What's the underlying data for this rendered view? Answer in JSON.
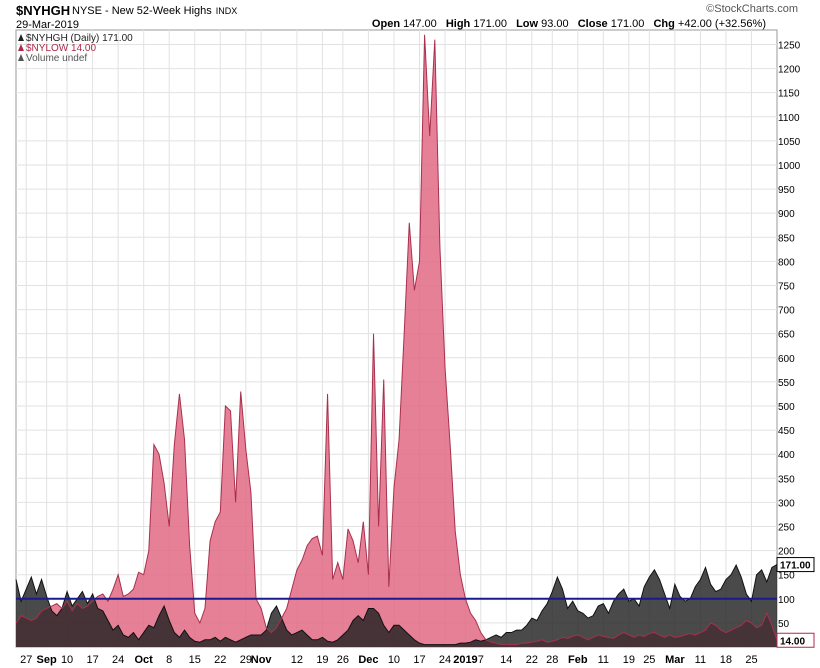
{
  "header": {
    "symbol": "$NYHGH",
    "description": "NYSE - New 52-Week Highs",
    "exchange": "INDX",
    "date": "29-Mar-2019",
    "brand": "©StockCharts.com",
    "open_label": "Open",
    "open": "147.00",
    "high_label": "High",
    "high": "171.00",
    "low_label": "Low",
    "low": "93.00",
    "close_label": "Close",
    "close": "171.00",
    "chg_label": "Chg",
    "chg": "+42.00 (+32.56%)"
  },
  "chart_data": {
    "type": "area",
    "legend": [
      {
        "label": "$NYHGH (Daily) 171.00",
        "color": "#222222"
      },
      {
        "label": "$NYLOW 14.00",
        "color": "#b0284a"
      },
      {
        "label": "Volume undef",
        "color": "#555555"
      }
    ],
    "ylim": [
      0,
      1280
    ],
    "yticks": [
      50,
      100,
      150,
      200,
      250,
      300,
      350,
      400,
      450,
      500,
      550,
      600,
      650,
      700,
      750,
      800,
      850,
      900,
      950,
      1000,
      1050,
      1100,
      1150,
      1200,
      1250
    ],
    "reference_line": 100,
    "last_value_labels": [
      {
        "text": "171.00",
        "value": 171
      },
      {
        "text": "14.00",
        "value": 14
      }
    ],
    "xtick_labels": [
      {
        "text": "27",
        "index": 2,
        "bold": false
      },
      {
        "text": "Sep",
        "index": 6,
        "bold": true
      },
      {
        "text": "10",
        "index": 10,
        "bold": false
      },
      {
        "text": "17",
        "index": 15,
        "bold": false
      },
      {
        "text": "24",
        "index": 20,
        "bold": false
      },
      {
        "text": "Oct",
        "index": 25,
        "bold": true
      },
      {
        "text": "8",
        "index": 30,
        "bold": false
      },
      {
        "text": "15",
        "index": 35,
        "bold": false
      },
      {
        "text": "22",
        "index": 40,
        "bold": false
      },
      {
        "text": "29",
        "index": 45,
        "bold": false
      },
      {
        "text": "Nov",
        "index": 48,
        "bold": true
      },
      {
        "text": "12",
        "index": 55,
        "bold": false
      },
      {
        "text": "19",
        "index": 60,
        "bold": false
      },
      {
        "text": "26",
        "index": 64,
        "bold": false
      },
      {
        "text": "Dec",
        "index": 69,
        "bold": true
      },
      {
        "text": "10",
        "index": 74,
        "bold": false
      },
      {
        "text": "17",
        "index": 79,
        "bold": false
      },
      {
        "text": "24",
        "index": 84,
        "bold": false
      },
      {
        "text": "2019",
        "index": 88,
        "bold": true
      },
      {
        "text": "7",
        "index": 91,
        "bold": false
      },
      {
        "text": "14",
        "index": 96,
        "bold": false
      },
      {
        "text": "22",
        "index": 101,
        "bold": false
      },
      {
        "text": "28",
        "index": 105,
        "bold": false
      },
      {
        "text": "Feb",
        "index": 110,
        "bold": true
      },
      {
        "text": "11",
        "index": 115,
        "bold": false
      },
      {
        "text": "19",
        "index": 120,
        "bold": false
      },
      {
        "text": "25",
        "index": 124,
        "bold": false
      },
      {
        "text": "Mar",
        "index": 129,
        "bold": true
      },
      {
        "text": "11",
        "index": 134,
        "bold": false
      },
      {
        "text": "18",
        "index": 139,
        "bold": false
      },
      {
        "text": "25",
        "index": 144,
        "bold": false
      }
    ],
    "series": [
      {
        "name": "$NYHGH",
        "color": "#222222",
        "values": [
          140,
          95,
          120,
          145,
          110,
          140,
          105,
          75,
          65,
          80,
          115,
          85,
          100,
          115,
          90,
          110,
          80,
          75,
          55,
          35,
          45,
          25,
          20,
          30,
          15,
          30,
          45,
          40,
          65,
          85,
          55,
          30,
          20,
          35,
          20,
          12,
          10,
          15,
          15,
          20,
          12,
          20,
          15,
          10,
          15,
          20,
          25,
          25,
          25,
          35,
          70,
          85,
          60,
          35,
          25,
          30,
          35,
          25,
          15,
          15,
          20,
          12,
          10,
          15,
          25,
          35,
          55,
          65,
          55,
          80,
          80,
          70,
          45,
          30,
          45,
          45,
          35,
          25,
          15,
          8,
          5,
          5,
          5,
          5,
          5,
          5,
          5,
          8,
          8,
          10,
          15,
          12,
          15,
          20,
          25,
          20,
          30,
          30,
          35,
          35,
          45,
          60,
          55,
          75,
          90,
          115,
          145,
          120,
          80,
          95,
          75,
          70,
          60,
          65,
          85,
          90,
          70,
          95,
          110,
          120,
          95,
          100,
          85,
          125,
          145,
          160,
          140,
          110,
          80,
          130,
          105,
          95,
          100,
          125,
          140,
          165,
          130,
          115,
          120,
          140,
          150,
          170,
          145,
          110,
          95,
          150,
          160,
          135,
          165,
          171
        ]
      },
      {
        "name": "$NYLOW",
        "color": "#e26a84",
        "values": [
          50,
          65,
          60,
          55,
          60,
          75,
          80,
          85,
          90,
          80,
          95,
          75,
          90,
          80,
          85,
          95,
          105,
          110,
          95,
          120,
          150,
          105,
          110,
          120,
          155,
          150,
          200,
          420,
          400,
          340,
          250,
          420,
          525,
          430,
          210,
          70,
          50,
          80,
          220,
          260,
          280,
          500,
          490,
          300,
          530,
          410,
          320,
          100,
          80,
          40,
          30,
          40,
          60,
          80,
          120,
          160,
          180,
          210,
          225,
          230,
          190,
          525,
          140,
          175,
          140,
          245,
          220,
          175,
          260,
          150,
          650,
          250,
          555,
          125,
          330,
          430,
          650,
          880,
          740,
          800,
          1270,
          1060,
          1260,
          830,
          580,
          420,
          240,
          150,
          100,
          70,
          55,
          30,
          15,
          10,
          8,
          5,
          5,
          5,
          5,
          8,
          8,
          10,
          12,
          15,
          10,
          12,
          15,
          20,
          18,
          22,
          25,
          20,
          15,
          20,
          25,
          22,
          20,
          18,
          25,
          30,
          25,
          20,
          25,
          22,
          28,
          30,
          25,
          20,
          25,
          20,
          22,
          25,
          28,
          25,
          30,
          35,
          50,
          45,
          35,
          30,
          35,
          40,
          45,
          55,
          50,
          40,
          45,
          70,
          45,
          14
        ]
      }
    ]
  }
}
